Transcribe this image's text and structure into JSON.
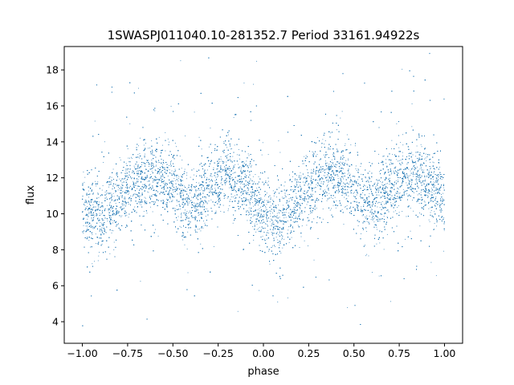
{
  "chart_data": {
    "type": "scatter",
    "title": "1SWASPJ011040.10-281352.7 Period 33161.94922s",
    "xlabel": "phase",
    "ylabel": "flux",
    "xlim": [
      -1.1,
      1.1
    ],
    "ylim": [
      2.8,
      19.3
    ],
    "x_ticks": [
      -1.0,
      -0.75,
      -0.5,
      -0.25,
      0.0,
      0.25,
      0.5,
      0.75,
      1.0
    ],
    "x_tick_labels": [
      "−1.00",
      "−0.75",
      "−0.50",
      "−0.25",
      "0.00",
      "0.25",
      "0.50",
      "0.75",
      "1.00"
    ],
    "y_ticks": [
      4,
      6,
      8,
      10,
      12,
      14,
      16,
      18
    ],
    "y_tick_labels": [
      "4",
      "6",
      "8",
      "10",
      "12",
      "14",
      "16",
      "18"
    ],
    "grid": false,
    "legend": "none",
    "marker_color": "#1f77b4",
    "series": [
      {
        "trend_x": [
          -1.0,
          -0.9,
          -0.8,
          -0.7,
          -0.6,
          -0.5,
          -0.4,
          -0.3,
          -0.2,
          -0.1,
          0.0,
          0.1,
          0.2,
          0.3,
          0.4,
          0.5,
          0.6,
          0.7,
          0.8,
          0.9,
          1.0
        ],
        "trend_y": [
          10.5,
          9.8,
          10.8,
          11.9,
          12.2,
          11.4,
          10.3,
          11.5,
          12.3,
          11.5,
          10.0,
          9.6,
          10.8,
          12.0,
          12.3,
          11.3,
          10.3,
          11.4,
          12.2,
          12.0,
          10.8
        ],
        "scatter_spread": 1.0,
        "outlier_range": [
          3.7,
          19.0
        ],
        "point_count_estimate": 60000
      }
    ]
  }
}
